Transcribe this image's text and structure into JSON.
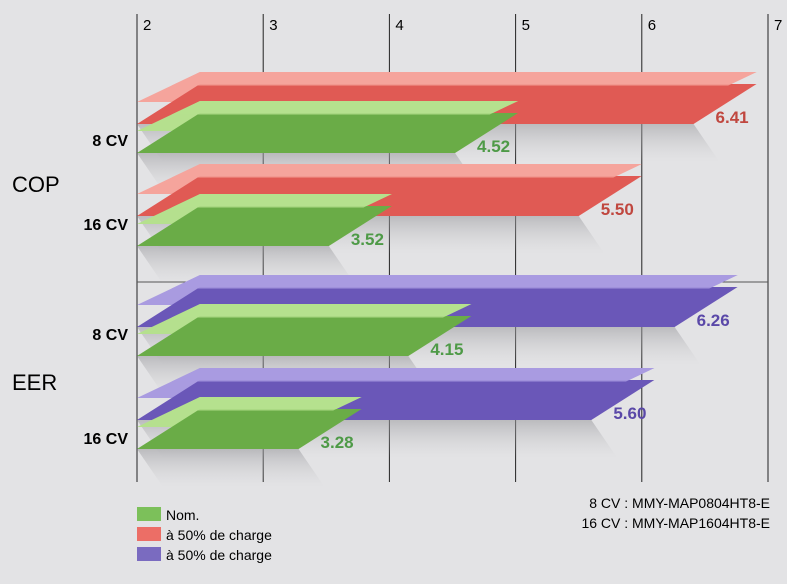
{
  "chart_data": {
    "type": "bar",
    "orientation": "horizontal",
    "style": "3d",
    "x_axis": {
      "ticks": [
        "2",
        "3",
        "4",
        "5",
        "6",
        "7"
      ],
      "range": [
        2,
        7
      ],
      "position": "top",
      "grid": true
    },
    "groups": [
      {
        "label": "COP",
        "rows": [
          {
            "label": "8 CV",
            "values": {
              "nom": 4.52,
              "charge": 6.41
            },
            "value_labels": {
              "nom": "4.52",
              "charge": "6.41"
            }
          },
          {
            "label": "16 CV",
            "values": {
              "nom": 3.52,
              "charge": 5.5
            },
            "value_labels": {
              "nom": "3.52",
              "charge": "5.50"
            }
          }
        ]
      },
      {
        "label": "EER",
        "rows": [
          {
            "label": "8 CV",
            "values": {
              "nom": 4.15,
              "charge": 6.26
            },
            "value_labels": {
              "nom": "4.15",
              "charge": "6.26"
            }
          },
          {
            "label": "16 CV",
            "values": {
              "nom": 3.28,
              "charge": 5.6
            },
            "value_labels": {
              "nom": "3.28",
              "charge": "5.60"
            }
          }
        ]
      }
    ],
    "legend": {
      "placement": "bottom-left",
      "entries": [
        {
          "key": "nom",
          "label": "Nom.",
          "color": "#7cc05a"
        },
        {
          "key": "charge_cop",
          "label": "à 50% de charge",
          "color": "#ec6e66"
        },
        {
          "key": "charge_eer",
          "label": "à 50% de charge",
          "color": "#7a6bc0"
        }
      ]
    },
    "notes": [
      "8 CV : MMY-MAP0804HT8-E",
      "16 CV : MMY-MAP1604HT8-E"
    ]
  },
  "colors": {
    "background": "#e3e3e5",
    "nom_front": "#6aac47",
    "nom_top": "#b5e08e",
    "nom_label": "#4e9a47",
    "cop_front": "#e05a54",
    "cop_top": "#f5a49c",
    "cop_label": "#c0473f",
    "eer_front": "#6a57b8",
    "eer_top": "#a99be0",
    "eer_label": "#5a48a8",
    "text": "#000000"
  }
}
